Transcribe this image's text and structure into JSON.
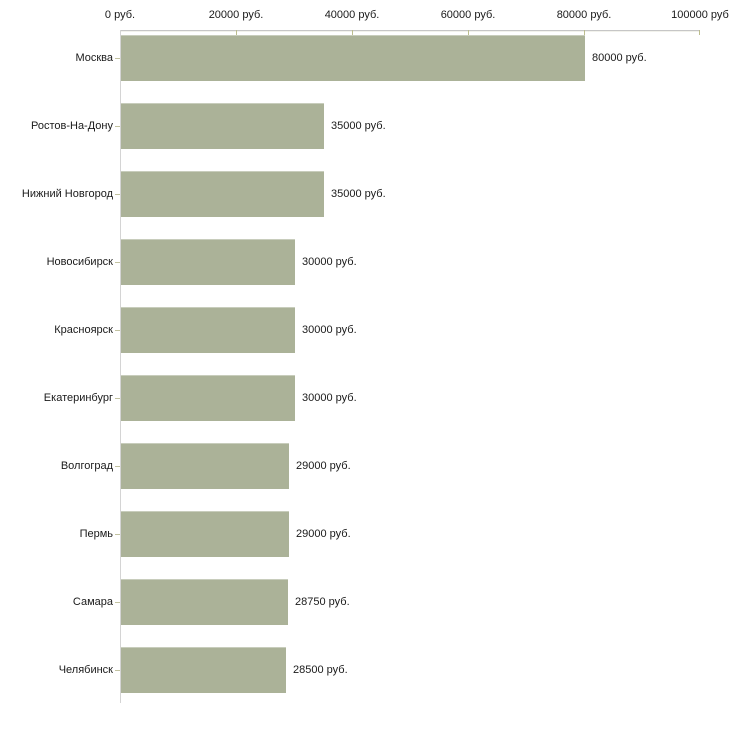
{
  "chart_data": {
    "type": "bar",
    "orientation": "horizontal",
    "title": "",
    "xlabel": "",
    "ylabel": "",
    "categories": [
      "Москва",
      "Ростов-На-Дону",
      "Нижний Новгород",
      "Новосибирск",
      "Красноярск",
      "Екатеринбург",
      "Волгоград",
      "Пермь",
      "Самара",
      "Челябинск"
    ],
    "values": [
      80000,
      35000,
      35000,
      30000,
      30000,
      30000,
      29000,
      29000,
      28750,
      28500
    ],
    "value_labels": [
      "80000 руб.",
      "35000 руб.",
      "35000 руб.",
      "30000 руб.",
      "30000 руб.",
      "30000 руб.",
      "29000 руб.",
      "29000 руб.",
      "28750 руб.",
      "28500 руб."
    ],
    "x_axis": {
      "position": "top",
      "range": [
        0,
        100000
      ],
      "ticks": [
        0,
        20000,
        40000,
        60000,
        80000,
        100000
      ],
      "tick_labels": [
        "0 руб.",
        "20000 руб.",
        "40000 руб.",
        "60000 руб.",
        "80000 руб.",
        "100000 руб"
      ]
    },
    "grid": false,
    "legend": false,
    "colors": {
      "bar": "#abb298",
      "axis_line": "#c6c6c6",
      "axis_line_highlight": "#f2f2ec",
      "tick": "#bcbd8e",
      "category_tick": "#c2c2a0",
      "text": "#1a1a1a",
      "background": "#ffffff"
    }
  }
}
